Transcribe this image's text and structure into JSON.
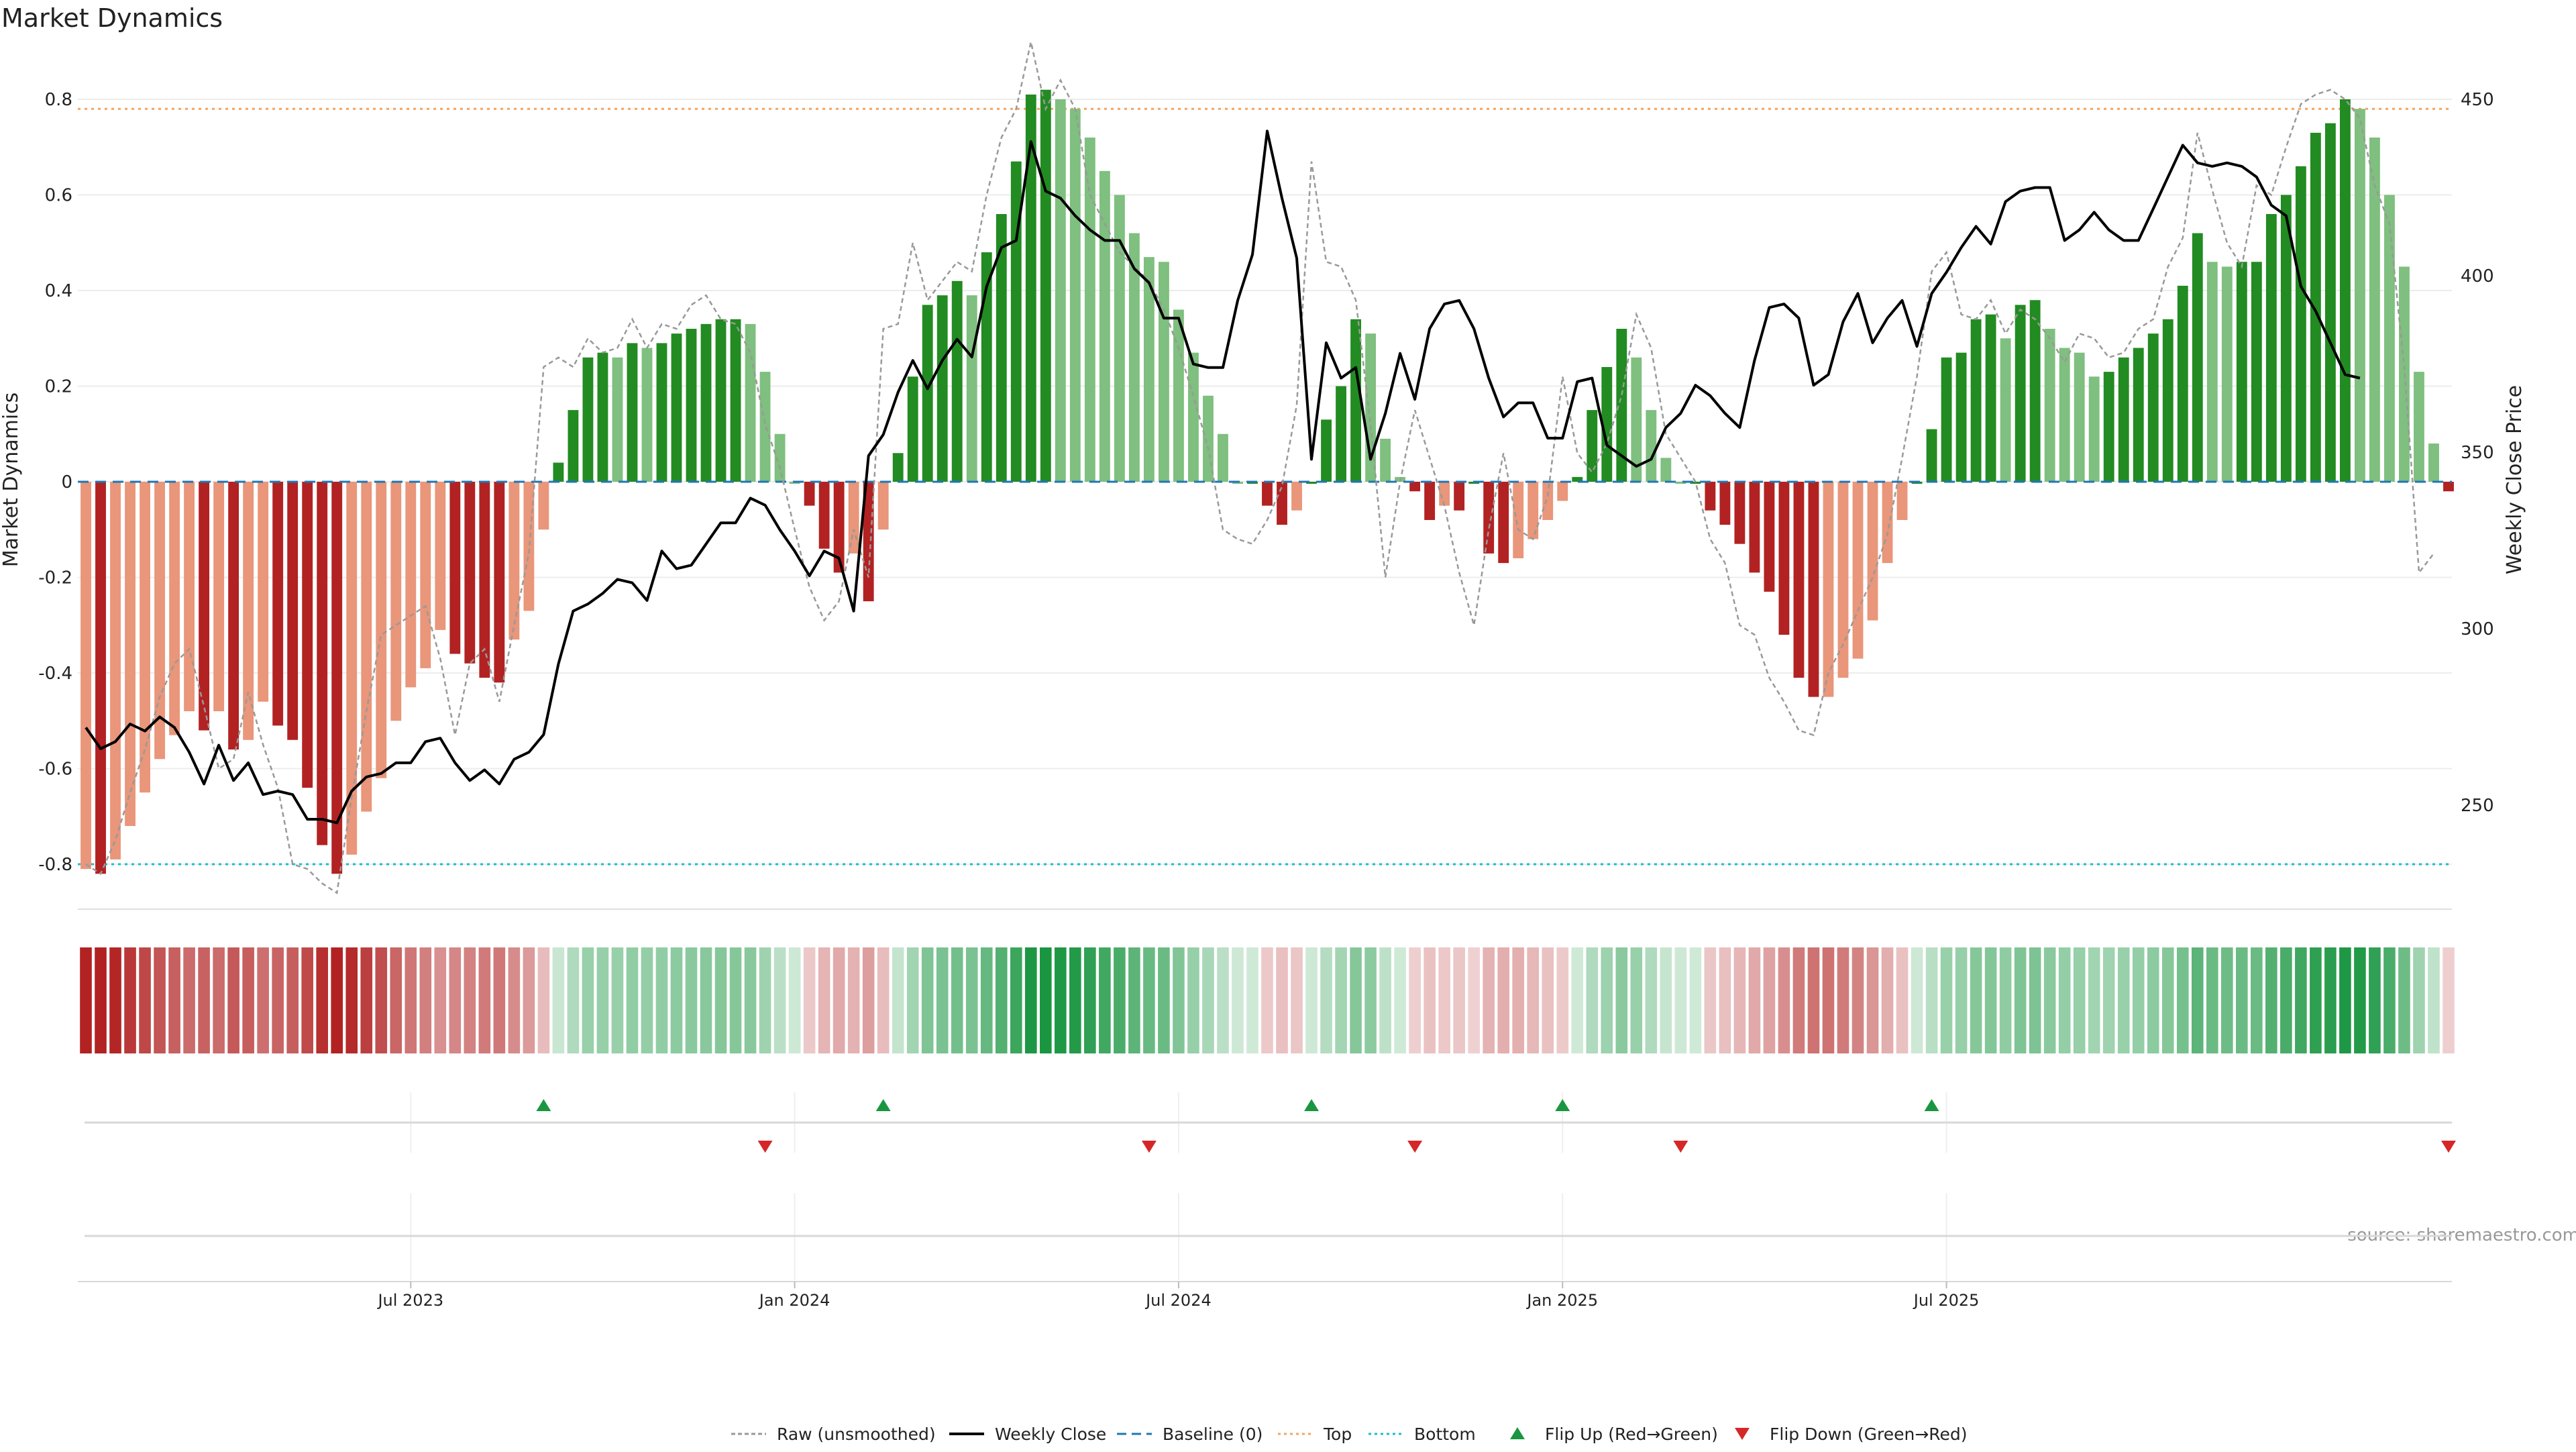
{
  "chart_data": {
    "type": "bar",
    "title": "Market Dynamics",
    "ylabel": "Market Dynamics",
    "y2label": "Weekly Close Price",
    "source": "source: sharemaestro.com",
    "ylim": [
      -0.9,
      0.9
    ],
    "y2lim": [
      220,
      460
    ],
    "yticks": [
      "0.8",
      "0.6",
      "0.4",
      "0.2",
      "0",
      "-0.2",
      "-0.4",
      "-0.6",
      "-0.8"
    ],
    "y2ticks": [
      "450",
      "400",
      "350",
      "300",
      "250"
    ],
    "xticks": [
      "Jul 2023",
      "Jan 2024",
      "Jul 2024",
      "Jan 2025",
      "Jul 2025"
    ],
    "top_level": 0.78,
    "bottom_level": -0.8,
    "baseline": 0,
    "legend": [
      {
        "key": "raw",
        "label": "Raw (unsmoothed)"
      },
      {
        "key": "close",
        "label": "Weekly Close"
      },
      {
        "key": "base",
        "label": "Baseline (0)"
      },
      {
        "key": "top",
        "label": "Top"
      },
      {
        "key": "bottom",
        "label": "Bottom"
      },
      {
        "key": "up",
        "label": "Flip Up (Red→Green)"
      },
      {
        "key": "down",
        "label": "Flip Down (Green→Red)"
      }
    ],
    "series": [
      {
        "name": "Smoothed",
        "values": [
          -0.81,
          -0.82,
          -0.79,
          -0.72,
          -0.65,
          -0.58,
          -0.53,
          -0.48,
          -0.52,
          -0.48,
          -0.56,
          -0.54,
          -0.46,
          -0.51,
          -0.54,
          -0.64,
          -0.76,
          -0.82,
          -0.78,
          -0.69,
          -0.62,
          -0.5,
          -0.43,
          -0.39,
          -0.31,
          -0.36,
          -0.38,
          -0.41,
          -0.42,
          -0.33,
          -0.27,
          -0.1,
          0.04,
          0.15,
          0.26,
          0.27,
          0.26,
          0.29,
          0.28,
          0.29,
          0.31,
          0.32,
          0.33,
          0.34,
          0.34,
          0.33,
          0.23,
          0.1,
          0,
          -0.05,
          -0.14,
          -0.19,
          -0.15,
          -0.25,
          -0.1,
          0.06,
          0.22,
          0.37,
          0.39,
          0.42,
          0.39,
          0.48,
          0.56,
          0.67,
          0.81,
          0.82,
          0.8,
          0.78,
          0.72,
          0.65,
          0.6,
          0.52,
          0.47,
          0.46,
          0.36,
          0.27,
          0.18,
          0.1,
          0,
          0,
          -0.05,
          -0.09,
          -0.06,
          0,
          0.13,
          0.2,
          0.34,
          0.31,
          0.09,
          0.01,
          -0.02,
          -0.08,
          -0.05,
          -0.06,
          0,
          -0.15,
          -0.17,
          -0.16,
          -0.12,
          -0.08,
          -0.04,
          0.01,
          0.15,
          0.24,
          0.32,
          0.26,
          0.15,
          0.05,
          0,
          0,
          -0.06,
          -0.09,
          -0.13,
          -0.19,
          -0.23,
          -0.32,
          -0.41,
          -0.45,
          -0.45,
          -0.41,
          -0.37,
          -0.29,
          -0.17,
          -0.08,
          0,
          0.11,
          0.26,
          0.27,
          0.34,
          0.35,
          0.3,
          0.37,
          0.38,
          0.32,
          0.28,
          0.27,
          0.22,
          0.23,
          0.26,
          0.28,
          0.31,
          0.34,
          0.41,
          0.52,
          0.46,
          0.45,
          0.46,
          0.46,
          0.56,
          0.6,
          0.66,
          0.73,
          0.75,
          0.8,
          0.78,
          0.72,
          0.6,
          0.45,
          0.23,
          0.08,
          -0.02
        ]
      },
      {
        "name": "Raw (unsmoothed)",
        "values": [
          -0.8,
          -0.82,
          -0.75,
          -0.65,
          -0.56,
          -0.45,
          -0.38,
          -0.35,
          -0.47,
          -0.6,
          -0.58,
          -0.44,
          -0.55,
          -0.64,
          -0.8,
          -0.81,
          -0.84,
          -0.86,
          -0.66,
          -0.48,
          -0.32,
          -0.3,
          -0.28,
          -0.26,
          -0.37,
          -0.53,
          -0.38,
          -0.35,
          -0.46,
          -0.3,
          -0.15,
          0.24,
          0.26,
          0.24,
          0.3,
          0.27,
          0.28,
          0.34,
          0.28,
          0.33,
          0.32,
          0.37,
          0.39,
          0.34,
          0.33,
          0.27,
          0.12,
          0.03,
          -0.1,
          -0.22,
          -0.29,
          -0.25,
          -0.1,
          -0.2,
          0.32,
          0.33,
          0.5,
          0.38,
          0.42,
          0.46,
          0.44,
          0.6,
          0.72,
          0.78,
          0.92,
          0.78,
          0.84,
          0.78,
          0.6,
          0.54,
          0.48,
          0.45,
          0.42,
          0.36,
          0.28,
          0.18,
          0.07,
          -0.1,
          -0.12,
          -0.13,
          -0.08,
          -0.01,
          0.16,
          0.67,
          0.46,
          0.45,
          0.38,
          0.12,
          -0.2,
          0.0,
          0.15,
          0.05,
          -0.05,
          -0.19,
          -0.3,
          -0.1,
          0.06,
          -0.1,
          -0.12,
          -0.03,
          0.22,
          0.06,
          0.02,
          0.08,
          0.18,
          0.35,
          0.28,
          0.1,
          0.05,
          0.0,
          -0.12,
          -0.17,
          -0.3,
          -0.32,
          -0.41,
          -0.46,
          -0.52,
          -0.53,
          -0.4,
          -0.34,
          -0.27,
          -0.2,
          -0.11,
          0.05,
          0.22,
          0.44,
          0.48,
          0.35,
          0.34,
          0.38,
          0.31,
          0.36,
          0.34,
          0.3,
          0.25,
          0.31,
          0.3,
          0.26,
          0.27,
          0.32,
          0.34,
          0.45,
          0.51,
          0.73,
          0.61,
          0.5,
          0.45,
          0.62,
          0.6,
          0.7,
          0.79,
          0.81,
          0.82,
          0.8,
          0.76,
          0.62,
          0.54,
          0.24,
          -0.19,
          -0.15
        ]
      },
      {
        "name": "Weekly Close",
        "values": [
          272,
          266,
          268,
          273,
          271,
          275,
          272,
          265,
          256,
          267,
          257,
          262,
          253,
          254,
          253,
          246,
          246,
          245,
          254,
          258,
          259,
          262,
          262,
          268,
          269,
          262,
          257,
          260,
          256,
          263,
          265,
          270,
          290,
          305,
          307,
          310,
          314,
          313,
          308,
          322,
          317,
          318,
          324,
          330,
          330,
          337,
          335,
          328,
          322,
          315,
          322,
          320,
          305,
          349,
          355,
          367,
          376,
          368,
          376,
          382,
          377,
          397,
          408,
          410,
          438,
          424,
          422,
          417,
          413,
          410,
          410,
          402,
          398,
          388,
          388,
          375,
          374,
          374,
          393,
          406,
          441,
          422,
          405,
          348,
          381,
          371,
          374,
          348,
          361,
          378,
          365,
          385,
          392,
          393,
          385,
          371,
          360,
          364,
          364,
          354,
          354,
          370,
          371,
          352,
          349,
          346,
          348,
          357,
          361,
          369,
          366,
          361,
          357,
          376,
          391,
          392,
          388,
          369,
          372,
          387,
          395,
          381,
          388,
          393,
          380,
          395,
          401,
          408,
          414,
          409,
          421,
          424,
          425,
          425,
          410,
          413,
          418,
          413,
          410,
          410,
          419,
          428,
          437,
          432,
          431,
          432,
          431,
          428,
          420,
          417,
          397,
          390,
          381,
          372,
          371
        ]
      }
    ],
    "regime": [
      -0.82,
      -0.82,
      -0.8,
      -0.72,
      -0.65,
      -0.58,
      -0.53,
      -0.48,
      -0.52,
      -0.48,
      -0.56,
      -0.54,
      -0.46,
      -0.51,
      -0.54,
      -0.64,
      -0.76,
      -0.82,
      -0.78,
      -0.69,
      -0.62,
      -0.5,
      -0.43,
      -0.39,
      -0.31,
      -0.36,
      -0.38,
      -0.41,
      -0.42,
      -0.33,
      -0.27,
      -0.1,
      0.04,
      0.15,
      0.26,
      0.27,
      0.26,
      0.29,
      0.28,
      0.29,
      0.31,
      0.32,
      0.33,
      0.34,
      0.34,
      0.33,
      0.23,
      0.1,
      0.02,
      -0.05,
      -0.14,
      -0.19,
      -0.15,
      -0.25,
      -0.1,
      0.06,
      0.22,
      0.37,
      0.39,
      0.42,
      0.39,
      0.48,
      0.56,
      0.67,
      0.81,
      0.82,
      0.8,
      0.78,
      0.72,
      0.65,
      0.6,
      0.52,
      0.47,
      0.46,
      0.36,
      0.27,
      0.18,
      0.1,
      0.02,
      0.01,
      -0.05,
      -0.09,
      -0.06,
      0.02,
      0.13,
      0.2,
      0.34,
      0.31,
      0.09,
      0.01,
      -0.02,
      -0.08,
      -0.05,
      -0.06,
      -0.01,
      -0.15,
      -0.17,
      -0.16,
      -0.12,
      -0.08,
      -0.04,
      0.01,
      0.15,
      0.24,
      0.32,
      0.26,
      0.15,
      0.05,
      0.02,
      0.01,
      -0.06,
      -0.09,
      -0.13,
      -0.19,
      -0.23,
      -0.32,
      -0.41,
      -0.45,
      -0.45,
      -0.41,
      -0.37,
      -0.29,
      -0.17,
      -0.08,
      0.02,
      0.11,
      0.26,
      0.27,
      0.34,
      0.35,
      0.3,
      0.37,
      0.38,
      0.32,
      0.28,
      0.27,
      0.22,
      0.23,
      0.26,
      0.28,
      0.31,
      0.34,
      0.41,
      0.52,
      0.46,
      0.45,
      0.46,
      0.46,
      0.56,
      0.6,
      0.66,
      0.73,
      0.75,
      0.8,
      0.78,
      0.72,
      0.6,
      0.45,
      0.23,
      0.08,
      -0.02
    ],
    "flips_up": [
      31,
      54,
      83,
      100,
      125
    ],
    "flips_down": [
      46,
      72,
      90,
      108,
      160
    ],
    "colors": {
      "strong_red": "#b22222",
      "light_red": "#e9967a",
      "strong_green": "#228b22",
      "light_green": "#7fbf7f",
      "close_line": "#000000",
      "raw_line": "#999999",
      "baseline": "#1f77b4",
      "top": "#f4a460",
      "bottom": "#17becf",
      "flip_up": "#1a9641",
      "flip_down": "#d62728"
    }
  }
}
